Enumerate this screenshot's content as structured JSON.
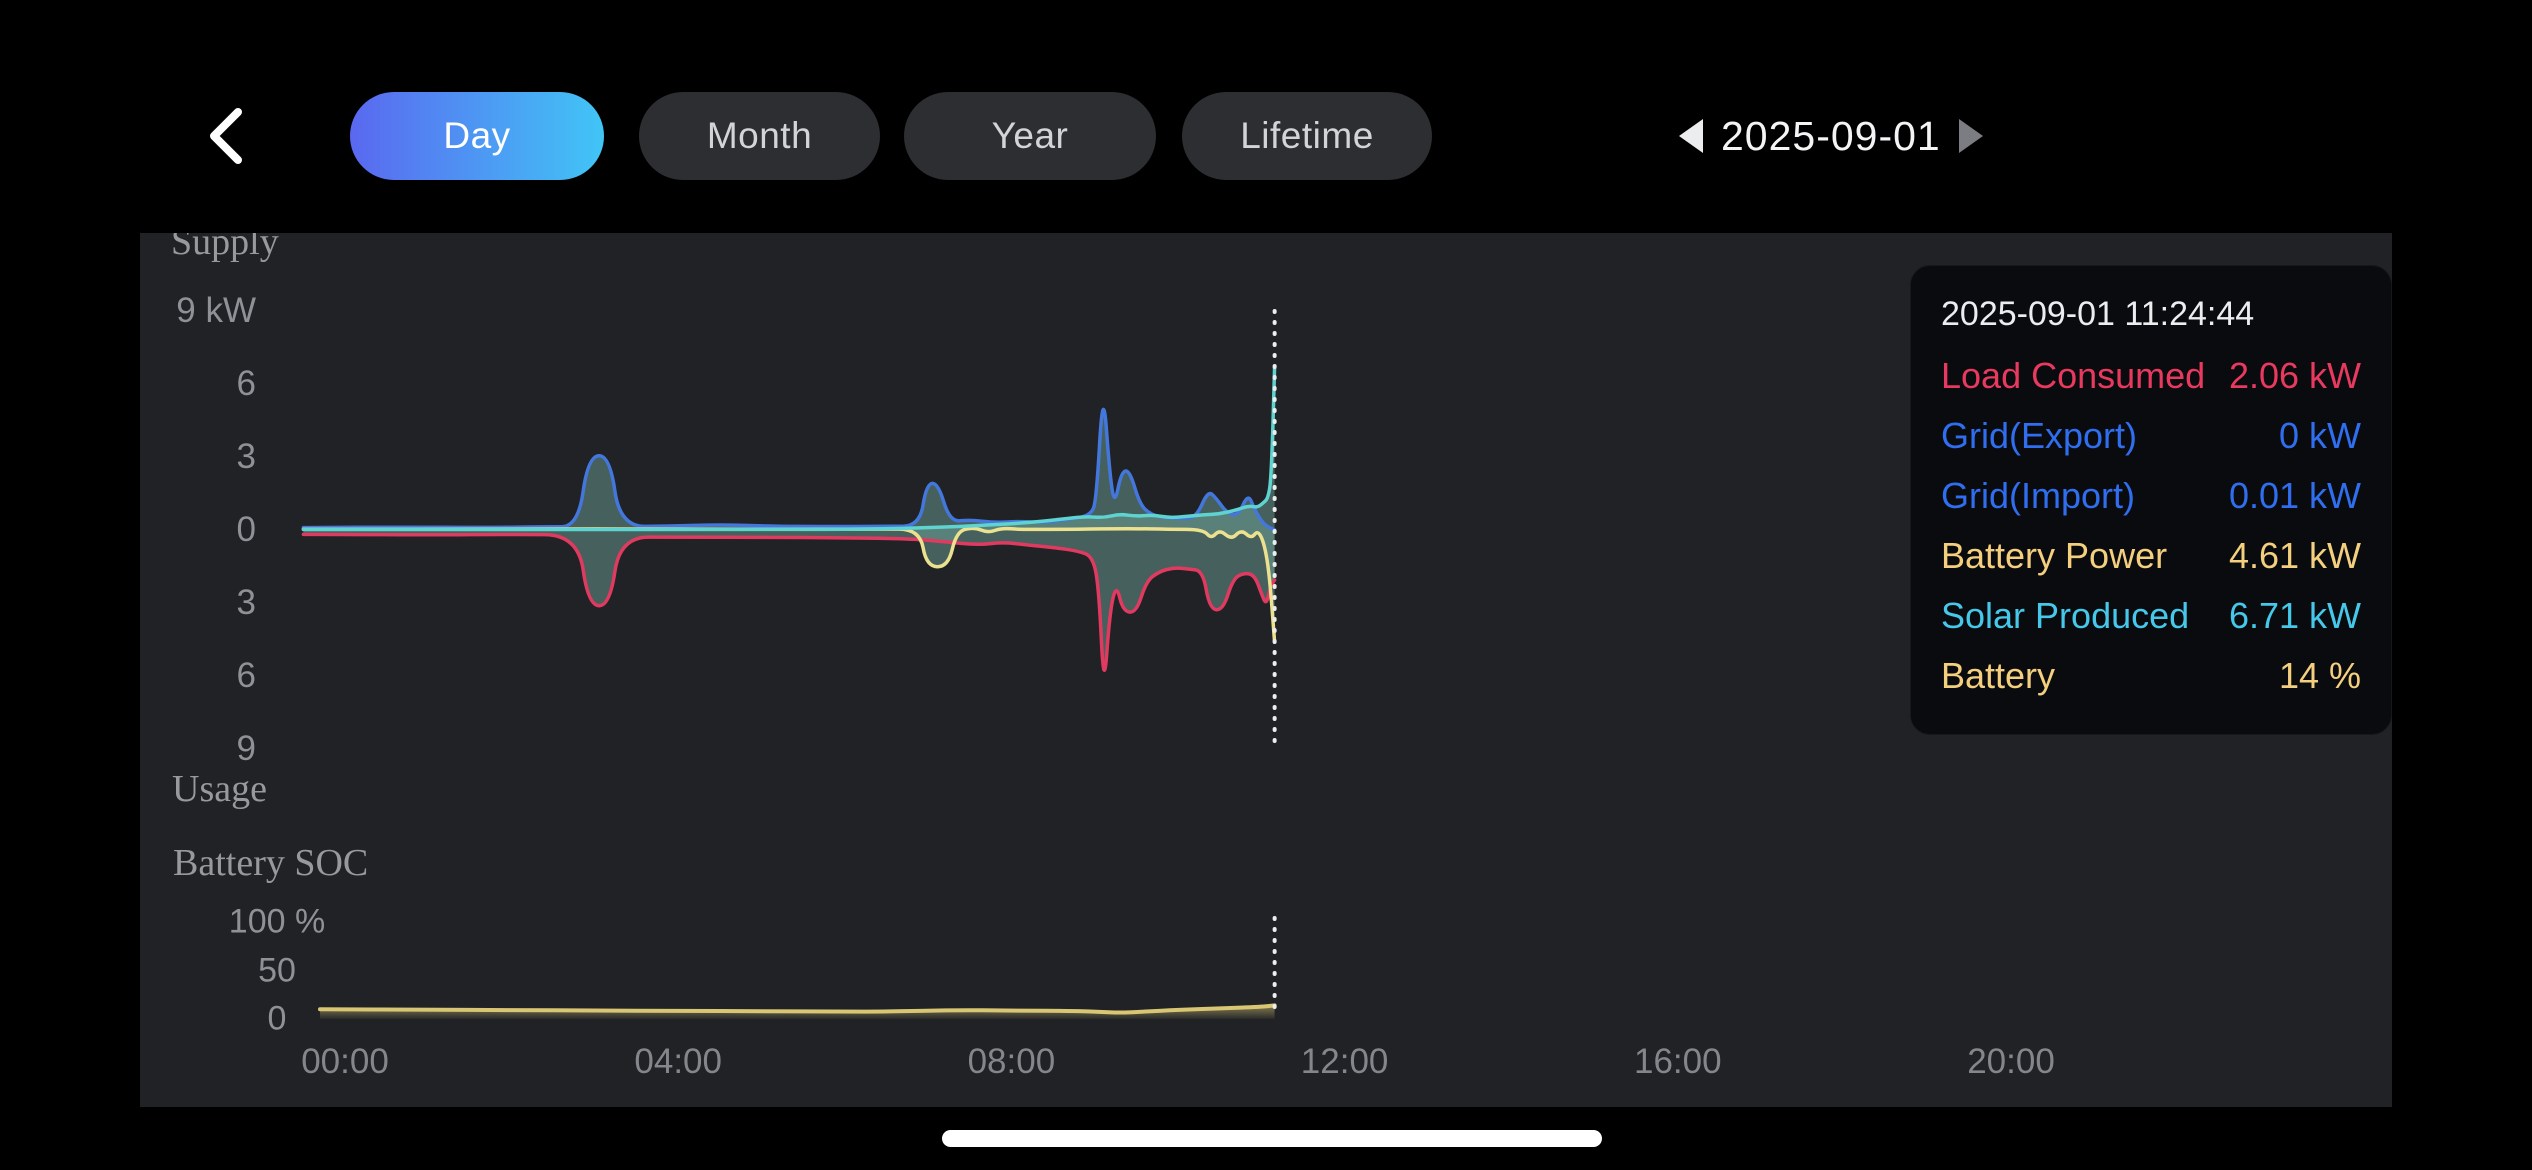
{
  "header": {
    "tabs": [
      {
        "label": "Day",
        "active": true
      },
      {
        "label": "Month",
        "active": false
      },
      {
        "label": "Year",
        "active": false
      },
      {
        "label": "Lifetime",
        "active": false
      }
    ],
    "date": "2025-09-01",
    "active_tab_gradient": [
      "#5a68f0",
      "#41c5f6"
    ]
  },
  "tooltip": {
    "timestamp": "2025-09-01 11:24:44",
    "rows": [
      {
        "label": "Load Consumed",
        "value": "2.06 kW",
        "color": "#e8395f"
      },
      {
        "label": "Grid(Export)",
        "value": "0 kW",
        "color": "#306ef0"
      },
      {
        "label": "Grid(Import)",
        "value": "0.01 kW",
        "color": "#306ef0"
      },
      {
        "label": "Battery Power",
        "value": "4.61 kW",
        "color": "#f4cf7e"
      },
      {
        "label": "Solar Produced",
        "value": "6.71 kW",
        "color": "#45c8ea"
      },
      {
        "label": "Battery",
        "value": "14 %",
        "color": "#f4cf7e"
      }
    ]
  },
  "chart_data": [
    {
      "id": "power",
      "type": "area",
      "title_top": "Supply",
      "title_bottom": "Usage",
      "unit": "kW",
      "ylim": [
        -9.3,
        9.3
      ],
      "grid": false,
      "area_fill": "rgba(110,165,155,0.48)",
      "cursor_time": "11:24:44",
      "cursor_t": 11.16,
      "y_ticks": [
        {
          "v": 9,
          "label": "9 kW"
        },
        {
          "v": 6,
          "label": "6"
        },
        {
          "v": 3,
          "label": "3"
        },
        {
          "v": 0,
          "label": "0"
        },
        {
          "v": -3,
          "label": "3"
        },
        {
          "v": -6,
          "label": "6"
        },
        {
          "v": -9,
          "label": "9"
        }
      ],
      "x_ticks": [
        {
          "t": 0,
          "label": "00:00"
        },
        {
          "t": 4,
          "label": "04:00"
        },
        {
          "t": 8,
          "label": "08:00"
        },
        {
          "t": 12,
          "label": "12:00"
        },
        {
          "t": 16,
          "label": "16:00"
        },
        {
          "t": 20,
          "label": "20:00"
        }
      ],
      "series": [
        {
          "name": "Grid",
          "color": "#4477dc",
          "points": [
            [
              -0.5,
              0.1
            ],
            [
              0.8,
              0.12
            ],
            [
              1.6,
              0.1
            ],
            [
              2.4,
              0.13
            ],
            [
              2.8,
              0.13
            ],
            [
              2.92,
              3.05
            ],
            [
              3.18,
              3.05
            ],
            [
              3.3,
              0.14
            ],
            [
              3.9,
              0.16
            ],
            [
              4.5,
              0.22
            ],
            [
              5.1,
              0.16
            ],
            [
              5.8,
              0.14
            ],
            [
              6.5,
              0.15
            ],
            [
              6.9,
              0.16
            ],
            [
              6.98,
              1.9
            ],
            [
              7.12,
              1.93
            ],
            [
              7.26,
              0.34
            ],
            [
              7.5,
              0.42
            ],
            [
              7.8,
              0.3
            ],
            [
              8.1,
              0.36
            ],
            [
              8.4,
              0.3
            ],
            [
              8.7,
              0.44
            ],
            [
              8.95,
              0.6
            ],
            [
              9.02,
              1.2
            ],
            [
              9.1,
              6.0
            ],
            [
              9.18,
              2.3
            ],
            [
              9.24,
              1.0
            ],
            [
              9.32,
              2.4
            ],
            [
              9.42,
              2.45
            ],
            [
              9.54,
              1.05
            ],
            [
              9.68,
              0.62
            ],
            [
              9.85,
              0.5
            ],
            [
              10.05,
              0.46
            ],
            [
              10.22,
              0.52
            ],
            [
              10.36,
              1.62
            ],
            [
              10.46,
              1.3
            ],
            [
              10.58,
              0.72
            ],
            [
              10.72,
              0.56
            ],
            [
              10.84,
              1.5
            ],
            [
              10.92,
              0.85
            ],
            [
              11.0,
              0.36
            ],
            [
              11.08,
              0.12
            ],
            [
              11.16,
              0.01
            ]
          ]
        },
        {
          "name": "Load Consumed",
          "color": "#e13a60",
          "points": [
            [
              -0.5,
              -0.18
            ],
            [
              1.0,
              -0.2
            ],
            [
              2.0,
              -0.18
            ],
            [
              2.8,
              -0.2
            ],
            [
              2.92,
              -3.1
            ],
            [
              3.18,
              -3.12
            ],
            [
              3.3,
              -0.28
            ],
            [
              4.0,
              -0.3
            ],
            [
              5.0,
              -0.3
            ],
            [
              6.0,
              -0.32
            ],
            [
              6.8,
              -0.36
            ],
            [
              7.2,
              -0.48
            ],
            [
              7.6,
              -0.62
            ],
            [
              7.9,
              -0.5
            ],
            [
              8.2,
              -0.62
            ],
            [
              8.5,
              -0.72
            ],
            [
              8.8,
              -0.86
            ],
            [
              8.98,
              -1.1
            ],
            [
              9.05,
              -2.4
            ],
            [
              9.11,
              -6.7
            ],
            [
              9.18,
              -3.4
            ],
            [
              9.26,
              -2.2
            ],
            [
              9.34,
              -3.35
            ],
            [
              9.5,
              -3.4
            ],
            [
              9.62,
              -2.1
            ],
            [
              9.78,
              -1.7
            ],
            [
              9.95,
              -1.55
            ],
            [
              10.12,
              -1.6
            ],
            [
              10.3,
              -1.68
            ],
            [
              10.38,
              -3.25
            ],
            [
              10.54,
              -3.3
            ],
            [
              10.66,
              -2.0
            ],
            [
              10.8,
              -1.76
            ],
            [
              10.92,
              -1.86
            ],
            [
              11.0,
              -2.6
            ],
            [
              11.06,
              -3.1
            ],
            [
              11.11,
              -2.3
            ],
            [
              11.16,
              -2.06
            ]
          ]
        },
        {
          "name": "Battery Power",
          "color": "#ece18e",
          "points": [
            [
              -0.5,
              0.03
            ],
            [
              2.0,
              0.03
            ],
            [
              3.0,
              0.05
            ],
            [
              4.0,
              0.03
            ],
            [
              6.4,
              0.03
            ],
            [
              6.9,
              0.04
            ],
            [
              6.98,
              -1.5
            ],
            [
              7.24,
              -1.52
            ],
            [
              7.34,
              -0.06
            ],
            [
              7.55,
              0.12
            ],
            [
              7.72,
              -0.12
            ],
            [
              7.88,
              0.08
            ],
            [
              8.1,
              0.02
            ],
            [
              8.8,
              0.03
            ],
            [
              9.4,
              0.06
            ],
            [
              9.9,
              0.03
            ],
            [
              10.3,
              0.02
            ],
            [
              10.4,
              -0.36
            ],
            [
              10.5,
              0.02
            ],
            [
              10.64,
              -0.4
            ],
            [
              10.76,
              0.02
            ],
            [
              10.88,
              -0.36
            ],
            [
              10.96,
              0.0
            ],
            [
              11.04,
              -0.6
            ],
            [
              11.1,
              -1.9
            ],
            [
              11.16,
              -4.61
            ]
          ]
        },
        {
          "name": "Solar Produced",
          "color": "#5ed3cf",
          "points": [
            [
              -0.5,
              0.02
            ],
            [
              5.5,
              0.02
            ],
            [
              6.0,
              0.03
            ],
            [
              6.5,
              0.05
            ],
            [
              7.0,
              0.1
            ],
            [
              7.4,
              0.15
            ],
            [
              7.8,
              0.22
            ],
            [
              8.2,
              0.3
            ],
            [
              8.6,
              0.44
            ],
            [
              8.9,
              0.56
            ],
            [
              9.1,
              0.5
            ],
            [
              9.3,
              0.66
            ],
            [
              9.5,
              0.56
            ],
            [
              9.7,
              0.62
            ],
            [
              9.9,
              0.5
            ],
            [
              10.1,
              0.56
            ],
            [
              10.3,
              0.62
            ],
            [
              10.5,
              0.66
            ],
            [
              10.7,
              0.82
            ],
            [
              10.85,
              1.0
            ],
            [
              10.95,
              0.92
            ],
            [
              11.02,
              1.1
            ],
            [
              11.08,
              1.3
            ],
            [
              11.12,
              2.1
            ],
            [
              11.16,
              6.71
            ]
          ]
        }
      ]
    },
    {
      "id": "soc",
      "type": "line",
      "title": "Battery SOC",
      "unit": "%",
      "ylim": [
        0,
        100
      ],
      "grid": false,
      "cursor_t": 11.16,
      "y_ticks": [
        {
          "v": 100,
          "label": "100 %"
        },
        {
          "v": 50,
          "label": "50"
        },
        {
          "v": 0,
          "label": "0"
        }
      ],
      "series": [
        {
          "name": "Battery SOC",
          "color": "#d8c674",
          "points": [
            [
              -0.3,
              10.0
            ],
            [
              1.0,
              9.6
            ],
            [
              2.0,
              9.2
            ],
            [
              3.0,
              8.8
            ],
            [
              4.0,
              8.4
            ],
            [
              5.0,
              8.0
            ],
            [
              6.0,
              7.7
            ],
            [
              6.5,
              7.6
            ],
            [
              7.3,
              9.2
            ],
            [
              8.0,
              8.8
            ],
            [
              8.8,
              8.2
            ],
            [
              9.1,
              7.2
            ],
            [
              9.3,
              6.5
            ],
            [
              9.6,
              7.6
            ],
            [
              10.0,
              9.5
            ],
            [
              10.5,
              11.0
            ],
            [
              11.0,
              12.6
            ],
            [
              11.16,
              14.0
            ]
          ]
        }
      ]
    }
  ]
}
